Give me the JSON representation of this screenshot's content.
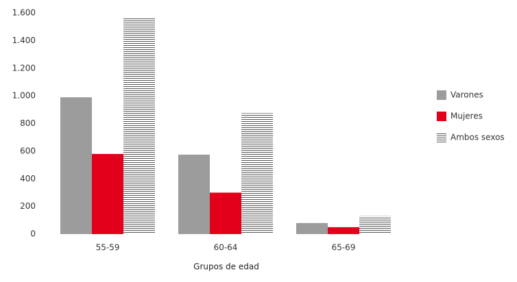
{
  "chart_data": {
    "type": "bar",
    "x_label": "Grupos de edad",
    "categories": [
      "55-59",
      "60-64",
      "65-69"
    ],
    "series": [
      {
        "name": "Varones",
        "color": "#9d9c9c",
        "values": [
          990,
          575,
          80
        ]
      },
      {
        "name": "Mujeres",
        "color": "#e2001a",
        "values": [
          580,
          300,
          50
        ]
      },
      {
        "name": "Ambos sexos",
        "color": "#555555",
        "pattern": "horizontal-lines",
        "values": [
          1570,
          875,
          130
        ]
      }
    ],
    "ylim": [
      0,
      1600
    ],
    "yticks": [
      0,
      200,
      400,
      600,
      800,
      {
        "value": 1000,
        "label": "1.000"
      },
      {
        "value": 1200,
        "label": "1.200"
      },
      {
        "value": 1400,
        "label": "1.400"
      },
      {
        "value": 1600,
        "label": "1.600"
      }
    ],
    "grid": false,
    "legend": "right"
  }
}
